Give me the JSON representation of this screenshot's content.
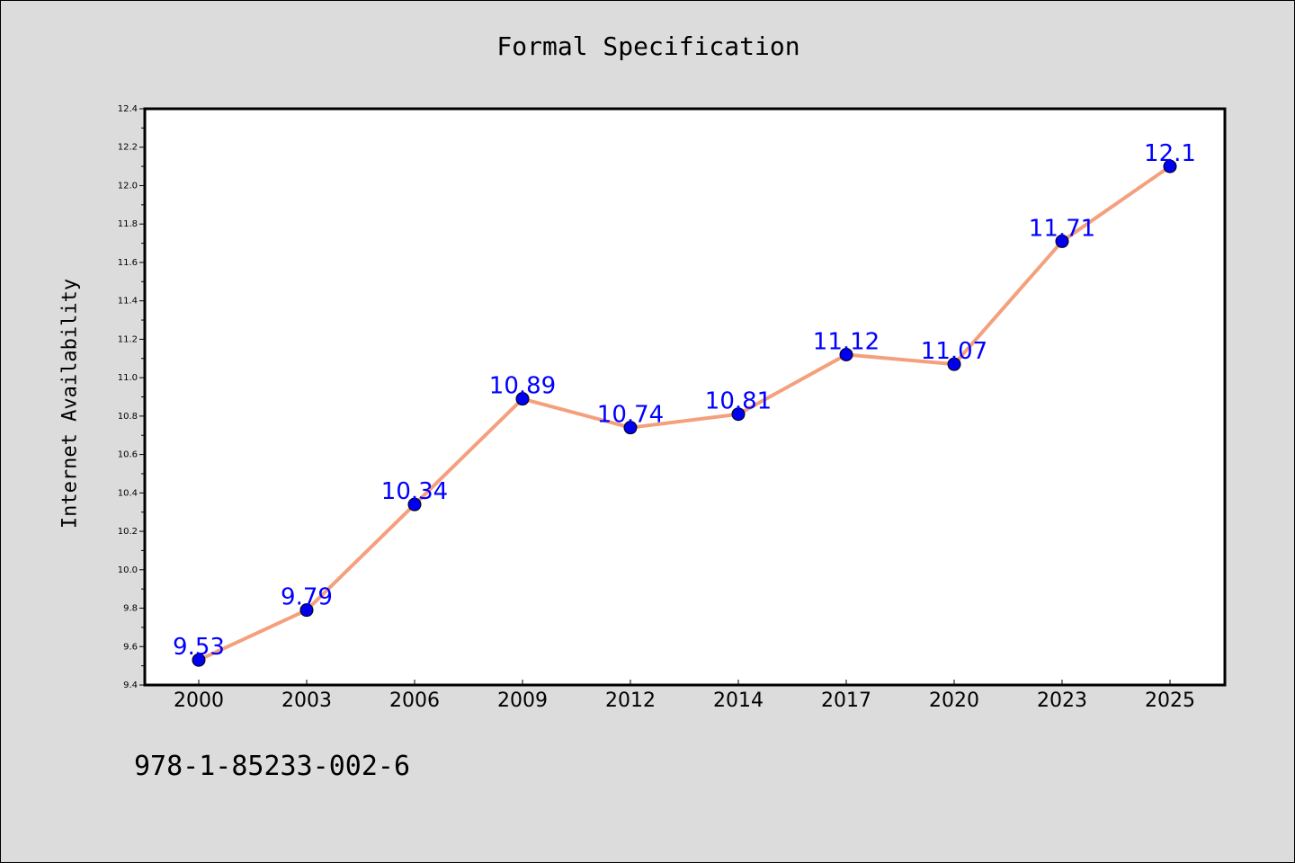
{
  "chart_data": {
    "type": "line",
    "title": "Formal Specification",
    "xlabel": "",
    "ylabel": "Internet Availability",
    "categories": [
      "2000",
      "2003",
      "2006",
      "2009",
      "2012",
      "2014",
      "2017",
      "2020",
      "2023",
      "2025"
    ],
    "values": [
      9.53,
      9.79,
      10.34,
      10.89,
      10.74,
      10.81,
      11.12,
      11.07,
      11.71,
      12.1
    ],
    "data_labels": [
      "9.53",
      "9.79",
      "10.34",
      "10.89",
      "10.74",
      "10.81",
      "11.12",
      "11.07",
      "11.71",
      "12.1"
    ],
    "ylim": [
      9.4,
      12.4
    ],
    "yticks": [
      "9.4",
      "9.6",
      "9.8",
      "10.0",
      "10.2",
      "10.4",
      "10.6",
      "10.8",
      "11.0",
      "11.2",
      "11.4",
      "11.6",
      "11.8",
      "12.0",
      "12.2",
      "12.4"
    ],
    "grid": false,
    "line_color": "#f4a07c",
    "marker_color": "#0000ee",
    "label_color": "#0000ff",
    "background_color": "#dcdcdc",
    "plot_background": "#ffffff"
  },
  "footer": {
    "isbn": "978-1-85233-002-6"
  }
}
